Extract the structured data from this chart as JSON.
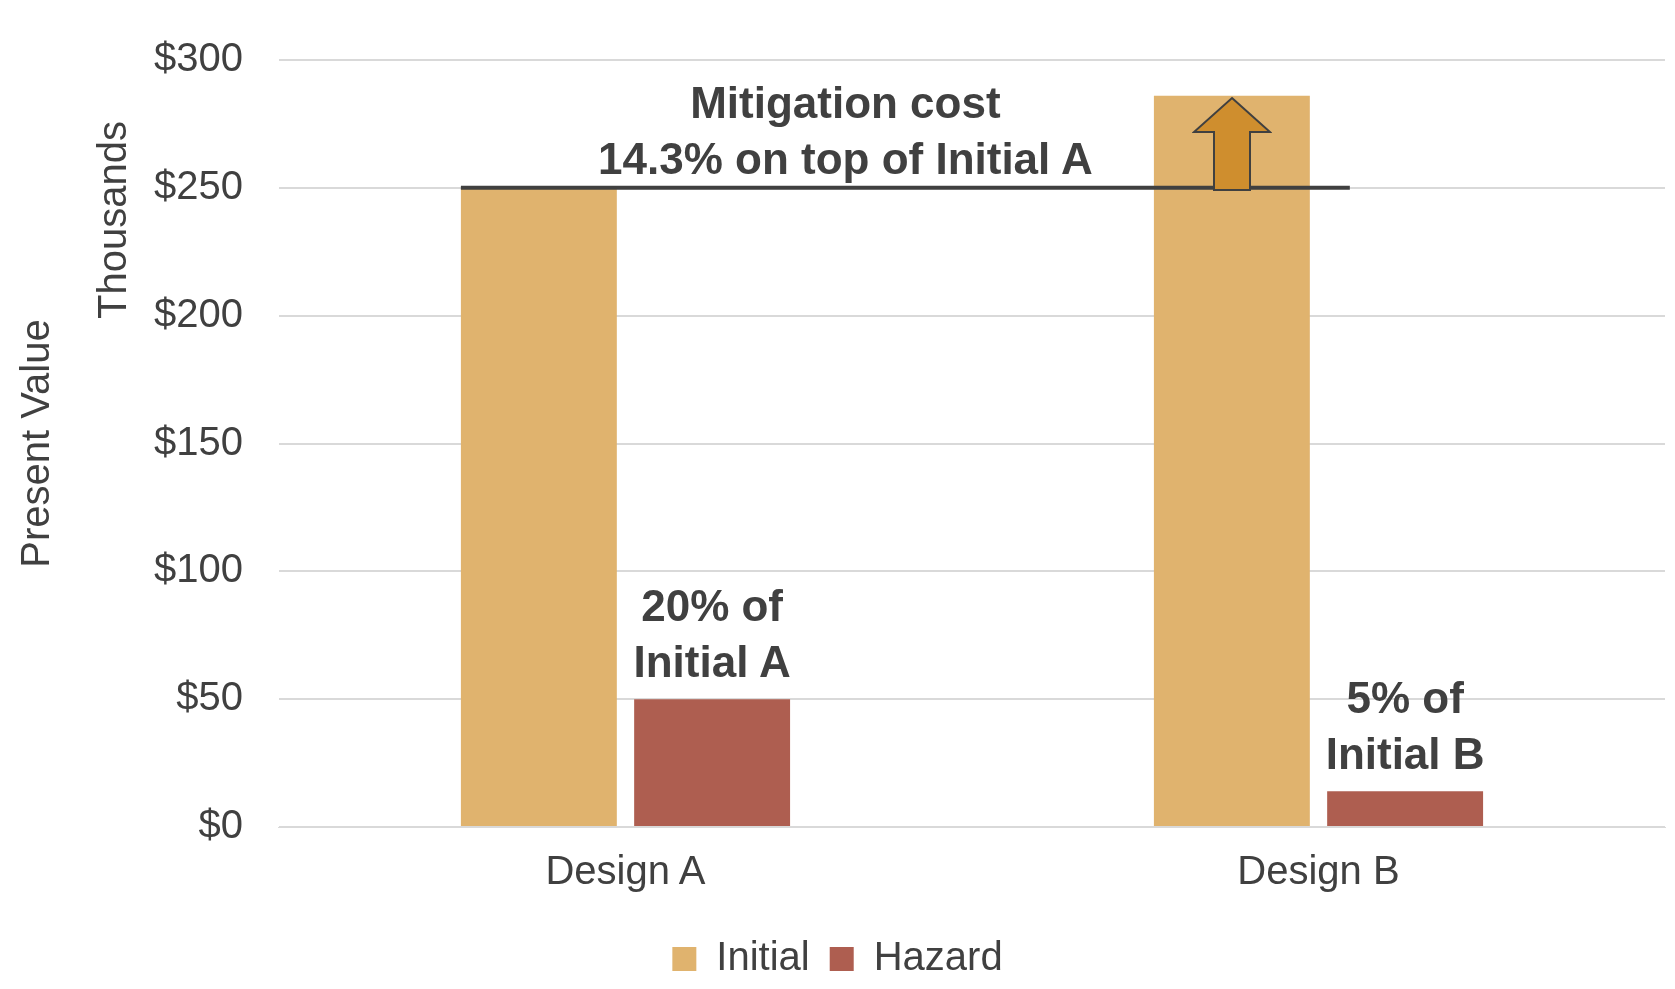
{
  "chart_data": {
    "type": "bar",
    "ylabel": "Present Value",
    "categories": [
      "Design A",
      "Design B"
    ],
    "series": [
      {
        "name": "Initial",
        "color": "#e0b36e",
        "values": [
          250,
          286
        ]
      },
      {
        "name": "Hazard",
        "color": "#ae5e50",
        "values": [
          50,
          14
        ]
      }
    ],
    "ylim": [
      0,
      300
    ],
    "yticks": [
      {
        "value": 0,
        "label": "$0"
      },
      {
        "value": 50,
        "label": "$50"
      },
      {
        "value": 100,
        "label": "$100"
      },
      {
        "value": 150,
        "label": "$150"
      },
      {
        "value": 200,
        "label": "$200"
      },
      {
        "value": 250,
        "label": "$250"
      },
      {
        "value": 300,
        "label": "$300"
      }
    ],
    "grid": "y",
    "legend": "bottom",
    "ref_lines": [
      {
        "axis": "y",
        "value": 250,
        "label": "Mitigation cost\n14.3% on top of Initial A",
        "color": "#404040"
      }
    ],
    "annotations": [
      "Thousands",
      "20% of\nInitial A",
      "5% of\nInitial B"
    ]
  }
}
